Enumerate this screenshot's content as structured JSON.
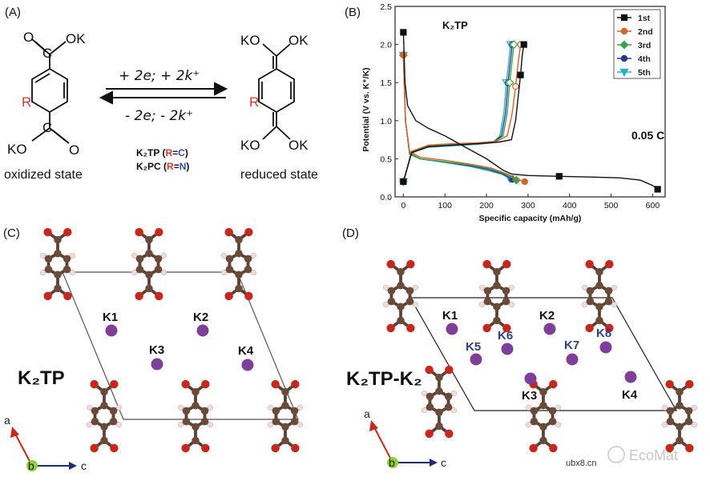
{
  "panels": {
    "a": {
      "letter": "(A)",
      "oxidized_label": "oxidized state",
      "reduced_label": "reduced state",
      "forward_reaction": "+ 2e; + 2k⁺",
      "reverse_reaction": "- 2e; - 2k⁺",
      "ok": "OK",
      "ko": "KO",
      "k": "K",
      "r": "R",
      "o": "O",
      "c": "C",
      "legend": [
        {
          "name": "K₂TP",
          "r_part": "R",
          "value": "C",
          "color": "#2f4fa8"
        },
        {
          "name": "K₂PC",
          "r_part": "R",
          "value": "N",
          "color": "#2f4fa8"
        }
      ]
    },
    "b": {
      "letter": "(B)",
      "compound": "K₂TP",
      "rate": "0.05 C"
    },
    "c": {
      "letter": "(C)",
      "big_label": "K₂TP",
      "k_labels": [
        "K1",
        "K2",
        "K3",
        "K4"
      ],
      "axis_a": "a",
      "axis_b": "b",
      "axis_c": "c"
    },
    "d": {
      "letter": "(D)",
      "big_label": "K₂TP-K₂",
      "k_labels": [
        "K1",
        "K2",
        "K3",
        "K4"
      ],
      "k_extra_labels": [
        "K5",
        "K6",
        "K7",
        "K8"
      ],
      "axis_a": "a",
      "axis_b": "b",
      "axis_c": "c"
    }
  },
  "watermark": {
    "brand": "EcoMat",
    "site": "ubx8.cn"
  },
  "colors": {
    "carbon": "#6b4a3a",
    "oxygen": "#c7281e",
    "hydrogen": "#f0dcdc",
    "potassium": "#7d3f98",
    "cell": "#555555",
    "axis_a": "#c7281e",
    "axis_c": "#1f2a78",
    "axis_b": "#8fcf3a"
  },
  "chart_data": {
    "type": "line",
    "xlabel": "Specific capacity (mAh/g)",
    "ylabel": "Potential (V vs. K⁺/K)",
    "xlim": [
      -20,
      630
    ],
    "ylim": [
      0,
      2.5
    ],
    "xticks": [
      0,
      100,
      200,
      300,
      400,
      500,
      600
    ],
    "yticks": [
      0.0,
      0.5,
      1.0,
      1.5,
      2.0,
      2.5
    ],
    "legend_position": "top-right",
    "series": [
      {
        "name": "1st",
        "color": "#111111",
        "marker": "square",
        "discharge": [
          [
            0,
            2.16
          ],
          [
            4,
            1.5
          ],
          [
            10,
            1.2
          ],
          [
            30,
            1.0
          ],
          [
            60,
            0.9
          ],
          [
            100,
            0.8
          ],
          [
            150,
            0.65
          ],
          [
            200,
            0.5
          ],
          [
            240,
            0.35
          ],
          [
            260,
            0.3
          ],
          [
            300,
            0.28
          ],
          [
            375,
            0.27
          ],
          [
            450,
            0.26
          ],
          [
            520,
            0.25
          ],
          [
            570,
            0.22
          ],
          [
            600,
            0.15
          ],
          [
            612,
            0.1
          ]
        ],
        "charge": [
          [
            0,
            0.2
          ],
          [
            20,
            0.58
          ],
          [
            60,
            0.66
          ],
          [
            120,
            0.68
          ],
          [
            180,
            0.7
          ],
          [
            230,
            0.72
          ],
          [
            260,
            0.75
          ],
          [
            270,
            1.0
          ],
          [
            276,
            1.3
          ],
          [
            282,
            1.6
          ],
          [
            286,
            1.85
          ],
          [
            290,
            2.0
          ]
        ]
      },
      {
        "name": "2nd",
        "color": "#d9612a",
        "marker": "circle",
        "discharge": [
          [
            0,
            1.86
          ],
          [
            5,
            1.0
          ],
          [
            15,
            0.6
          ],
          [
            40,
            0.52
          ],
          [
            100,
            0.48
          ],
          [
            160,
            0.43
          ],
          [
            210,
            0.38
          ],
          [
            250,
            0.3
          ],
          [
            280,
            0.22
          ],
          [
            292,
            0.2
          ]
        ],
        "charge": [
          [
            0,
            0.2
          ],
          [
            20,
            0.6
          ],
          [
            60,
            0.68
          ],
          [
            120,
            0.7
          ],
          [
            180,
            0.71
          ],
          [
            225,
            0.73
          ],
          [
            250,
            0.8
          ],
          [
            262,
            1.1
          ],
          [
            270,
            1.45
          ],
          [
            276,
            1.75
          ],
          [
            282,
            2.0
          ]
        ]
      },
      {
        "name": "3rd",
        "color": "#3aa34a",
        "marker": "diamond",
        "discharge": [
          [
            0,
            1.86
          ],
          [
            5,
            1.0
          ],
          [
            15,
            0.58
          ],
          [
            40,
            0.5
          ],
          [
            100,
            0.46
          ],
          [
            160,
            0.42
          ],
          [
            210,
            0.37
          ],
          [
            245,
            0.3
          ],
          [
            265,
            0.24
          ],
          [
            272,
            0.22
          ]
        ],
        "charge": [
          [
            0,
            0.2
          ],
          [
            20,
            0.6
          ],
          [
            60,
            0.67
          ],
          [
            120,
            0.69
          ],
          [
            180,
            0.7
          ],
          [
            220,
            0.72
          ],
          [
            240,
            0.8
          ],
          [
            250,
            1.1
          ],
          [
            256,
            1.5
          ],
          [
            262,
            1.8
          ],
          [
            266,
            2.0
          ]
        ]
      },
      {
        "name": "4th",
        "color": "#2b3a8f",
        "marker": "circle",
        "discharge": [
          [
            0,
            1.86
          ],
          [
            5,
            1.0
          ],
          [
            15,
            0.57
          ],
          [
            40,
            0.5
          ],
          [
            100,
            0.46
          ],
          [
            160,
            0.41
          ],
          [
            205,
            0.36
          ],
          [
            240,
            0.3
          ],
          [
            255,
            0.25
          ],
          [
            262,
            0.23
          ]
        ],
        "charge": [
          [
            0,
            0.2
          ],
          [
            20,
            0.59
          ],
          [
            60,
            0.66
          ],
          [
            120,
            0.68
          ],
          [
            180,
            0.7
          ],
          [
            218,
            0.72
          ],
          [
            236,
            0.8
          ],
          [
            246,
            1.1
          ],
          [
            252,
            1.5
          ],
          [
            258,
            1.8
          ],
          [
            262,
            2.0
          ]
        ]
      },
      {
        "name": "5th",
        "color": "#2bb0c4",
        "marker": "triangle-down",
        "discharge": [
          [
            0,
            1.86
          ],
          [
            5,
            1.0
          ],
          [
            15,
            0.56
          ],
          [
            40,
            0.5
          ],
          [
            100,
            0.45
          ],
          [
            160,
            0.4
          ],
          [
            200,
            0.35
          ],
          [
            235,
            0.3
          ],
          [
            250,
            0.26
          ],
          [
            256,
            0.24
          ]
        ],
        "charge": [
          [
            0,
            0.2
          ],
          [
            20,
            0.58
          ],
          [
            60,
            0.65
          ],
          [
            120,
            0.67
          ],
          [
            180,
            0.69
          ],
          [
            215,
            0.71
          ],
          [
            232,
            0.8
          ],
          [
            242,
            1.1
          ],
          [
            248,
            1.5
          ],
          [
            254,
            1.8
          ],
          [
            258,
            2.0
          ]
        ]
      }
    ]
  }
}
